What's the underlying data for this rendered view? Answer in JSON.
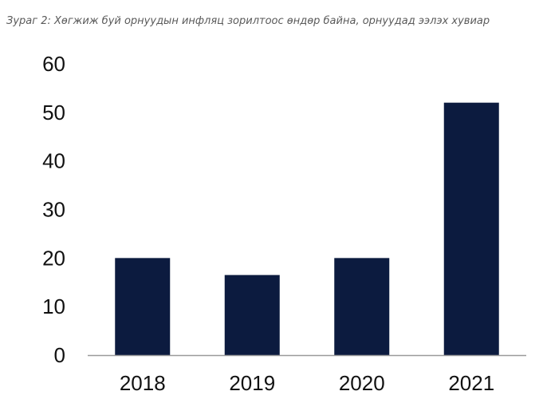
{
  "caption": "Зураг 2: Хөгжиж буй орнуудын инфляц зорилтоос өндөр байна, орнуудад ээлэх хувиар",
  "chart_data": {
    "type": "bar",
    "title": "",
    "xlabel": "",
    "ylabel": "",
    "categories": [
      "2018",
      "2019",
      "2020",
      "2021"
    ],
    "values": [
      20,
      16.5,
      20,
      52
    ],
    "ylim": [
      0,
      60
    ],
    "yticks": [
      "0",
      "10",
      "20",
      "30",
      "40",
      "50",
      "60"
    ],
    "grid": false,
    "legend": "none",
    "colors": {
      "bar": "#0c1b3f",
      "axis": "#9a9a9a",
      "text": "#111111"
    }
  }
}
